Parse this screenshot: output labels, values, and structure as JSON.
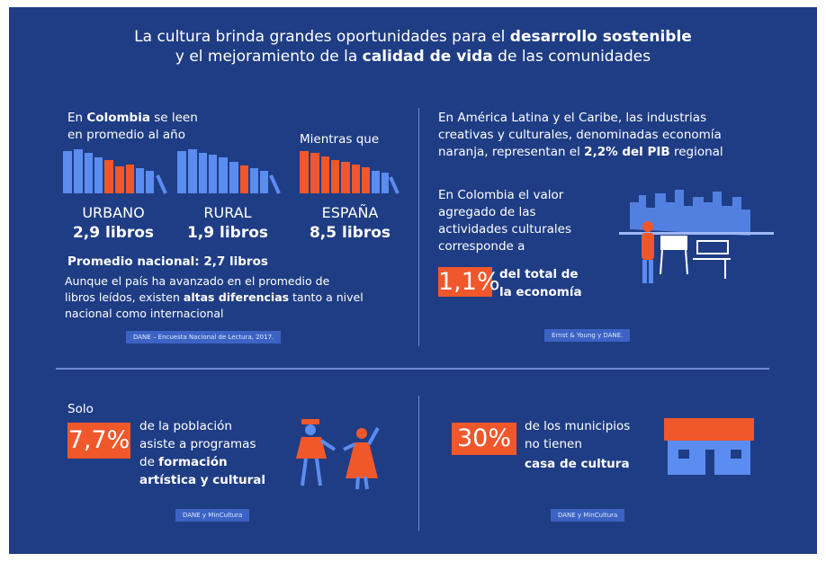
{
  "header": {
    "line1": [
      "La cultura brinda grandes oportunidades para el ",
      "desarrollo sostenible"
    ],
    "line2": [
      "y el mejoramiento de la ",
      "calidad de vida",
      " de las comunidades"
    ]
  },
  "reading": {
    "intro1": [
      "En ",
      "Colombia",
      " se leen"
    ],
    "intro2": "en promedio al año",
    "contrast": "Mientras que",
    "groups": [
      {
        "label": "URBANO",
        "value": "2,9 libros"
      },
      {
        "label": "RURAL",
        "value": "1,9 libros"
      },
      {
        "label": "ESPAÑA",
        "value": "8,5 libros"
      }
    ],
    "national": "Promedio nacional: 2,7 libros",
    "text": [
      [
        "Aunque el país ha avanzado en el promedio de"
      ],
      [
        "libros leídos, existen ",
        "altas diferencias",
        " tanto a nivel"
      ],
      [
        "nacional como internacional"
      ]
    ],
    "source": "DANE – Encuesta Nacional de Lectura, 2017."
  },
  "economy": {
    "intro": [
      [
        "En América Latina y el Caribe, las industrias"
      ],
      [
        "creativas y culturales, denominadas economía"
      ],
      [
        "naranja, representan el ",
        "2,2% del PIB",
        " regional"
      ]
    ],
    "text": [
      "En Colombia el valor",
      "agregado de las",
      "actividades culturales",
      "corresponde a"
    ],
    "figure": "1,1%",
    "figure_text": [
      "del total de",
      "la economía"
    ],
    "source": "Ernst & Young y DANE."
  },
  "training": {
    "lead": "Solo",
    "figure": "7,7%",
    "text": [
      [
        "de la población"
      ],
      [
        "asiste a programas"
      ],
      [
        "de ",
        "formación"
      ],
      [
        "artística y cultural"
      ]
    ],
    "source": "DANE y MinCultura"
  },
  "houses": {
    "figure": "30%",
    "text": [
      "de los municipios",
      "no tienen",
      "casa de cultura"
    ],
    "source": "DANE y MinCultura"
  }
}
